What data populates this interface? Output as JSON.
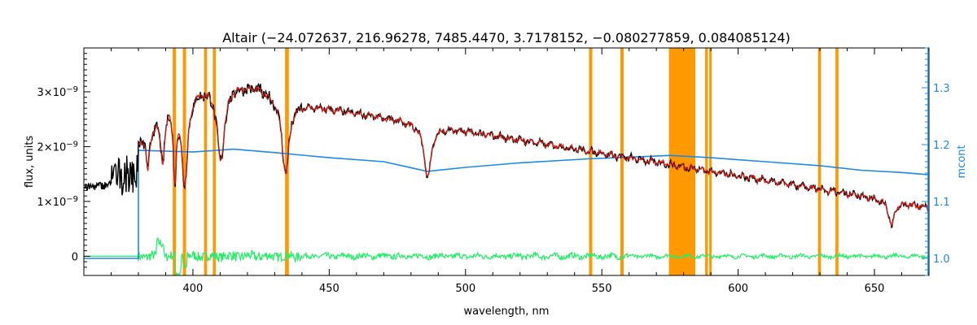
{
  "chart_data": {
    "type": "line",
    "title": "Altair    (−24.072637, 216.96278, 7485.4470, 3.7178152, −0.080277859, 0.084085124)",
    "xlabel": "wavelength, nm",
    "ylabel": "flux, units",
    "y2label": "mcont",
    "xlim": [
      360,
      670
    ],
    "ylim": [
      -3.5e-10,
      3.8e-09
    ],
    "y2lim": [
      0.97,
      1.37
    ],
    "x_ticks": [
      400,
      450,
      500,
      550,
      600,
      650
    ],
    "y_ticks": [
      {
        "value": 0,
        "base": "0",
        "exp": ""
      },
      {
        "value": 1e-09,
        "base": "1×10",
        "exp": "−9"
      },
      {
        "value": 2e-09,
        "base": "2×10",
        "exp": "−9"
      },
      {
        "value": 3e-09,
        "base": "3×10",
        "exp": "−9"
      }
    ],
    "y2_ticks": [
      "1.0",
      "1.1",
      "1.2",
      "1.3"
    ],
    "colors": {
      "observed": "#000000",
      "model": "#d91a12",
      "continuum": "#1a8ae6",
      "residual": "#22ee66",
      "mask": "#ff9900",
      "right_axis": "#1a8ae6"
    },
    "masked_regions": [
      [
        392.6,
        393.8
      ],
      [
        396.3,
        397.5
      ],
      [
        404.1,
        405.2
      ],
      [
        407.3,
        408.4
      ],
      [
        433.8,
        435.2
      ],
      [
        545.3,
        546.5
      ],
      [
        556.8,
        558.0
      ],
      [
        574.6,
        584.3
      ],
      [
        587.9,
        588.9
      ],
      [
        589.4,
        590.3
      ],
      [
        629.3,
        630.4
      ],
      [
        635.7,
        636.8
      ]
    ],
    "absorption_lines": [
      {
        "x": 383.5,
        "depth": 0.75,
        "width": 0.7
      },
      {
        "x": 388.9,
        "depth": 0.9,
        "width": 1.0
      },
      {
        "x": 393.4,
        "depth": 1.35,
        "width": 0.7
      },
      {
        "x": 397.0,
        "depth": 1.6,
        "width": 1.3
      },
      {
        "x": 410.2,
        "depth": 1.45,
        "width": 1.7
      },
      {
        "x": 434.0,
        "depth": 1.35,
        "width": 1.6
      },
      {
        "x": 486.1,
        "depth": 0.95,
        "width": 1.6
      },
      {
        "x": 656.3,
        "depth": 0.45,
        "width": 1.2
      }
    ],
    "continuum_curve": [
      {
        "x": 360,
        "y": 1.0
      },
      {
        "x": 380,
        "y": 1.0
      },
      {
        "x": 380,
        "y": 1.19
      },
      {
        "x": 400,
        "y": 1.187
      },
      {
        "x": 415,
        "y": 1.192
      },
      {
        "x": 430,
        "y": 1.186
      },
      {
        "x": 450,
        "y": 1.177
      },
      {
        "x": 470,
        "y": 1.17
      },
      {
        "x": 486,
        "y": 1.153
      },
      {
        "x": 500,
        "y": 1.16
      },
      {
        "x": 520,
        "y": 1.168
      },
      {
        "x": 545,
        "y": 1.175
      },
      {
        "x": 560,
        "y": 1.178
      },
      {
        "x": 575,
        "y": 1.181
      },
      {
        "x": 590,
        "y": 1.177
      },
      {
        "x": 610,
        "y": 1.17
      },
      {
        "x": 630,
        "y": 1.163
      },
      {
        "x": 645,
        "y": 1.155
      },
      {
        "x": 660,
        "y": 1.151
      },
      {
        "x": 670,
        "y": 1.147
      }
    ]
  }
}
